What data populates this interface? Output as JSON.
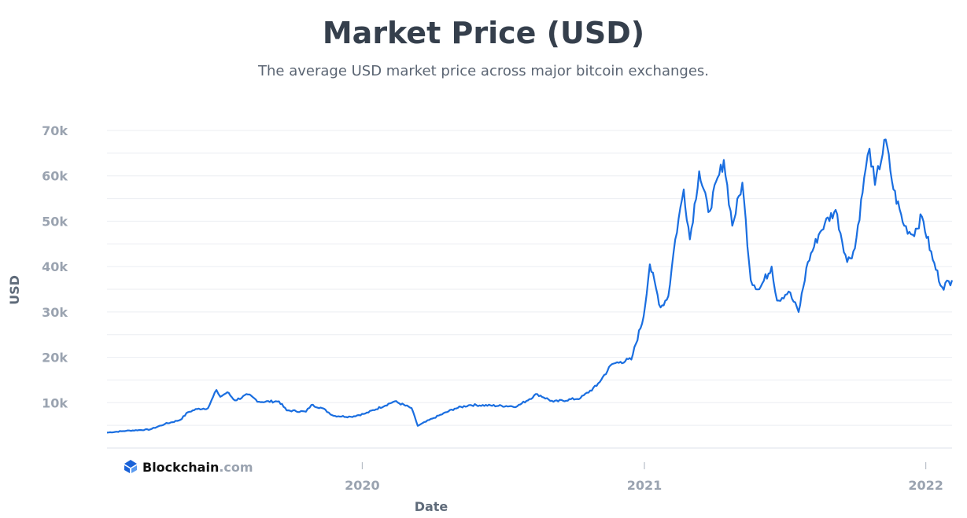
{
  "brand": {
    "name": "Blockchain",
    "suffix": ".com",
    "logo_color": "#1a62d8"
  },
  "chart_data": {
    "type": "line",
    "title": "Market Price (USD)",
    "subtitle": "The average USD market price across major bitcoin exchanges.",
    "xlabel": "Date",
    "ylabel": "USD",
    "x_ticks": [
      {
        "date": "2020-01-01",
        "label": "2020"
      },
      {
        "date": "2021-01-01",
        "label": "2021"
      },
      {
        "date": "2022-01-01",
        "label": "2022"
      }
    ],
    "y_ticks": [
      10000,
      20000,
      30000,
      40000,
      50000,
      60000,
      70000
    ],
    "y_tick_labels": [
      "10k",
      "20k",
      "30k",
      "40k",
      "50k",
      "60k",
      "70k"
    ],
    "xlim": [
      "2019-02-04",
      "2022-02-04"
    ],
    "ylim": [
      0,
      70000
    ],
    "grid": true,
    "line_color": "#1a6ee0",
    "series": [
      {
        "values": [
          [
            "2019-02-04",
            3400
          ],
          [
            "2019-03-01",
            3800
          ],
          [
            "2019-04-01",
            4100
          ],
          [
            "2019-04-20",
            5300
          ],
          [
            "2019-05-10",
            6200
          ],
          [
            "2019-05-20",
            7900
          ],
          [
            "2019-06-01",
            8600
          ],
          [
            "2019-06-15",
            8800
          ],
          [
            "2019-06-26",
            12800
          ],
          [
            "2019-07-01",
            11300
          ],
          [
            "2019-07-10",
            12300
          ],
          [
            "2019-07-20",
            10500
          ],
          [
            "2019-08-06",
            11800
          ],
          [
            "2019-08-20",
            10200
          ],
          [
            "2019-09-15",
            10300
          ],
          [
            "2019-09-25",
            8300
          ],
          [
            "2019-10-20",
            8000
          ],
          [
            "2019-10-27",
            9500
          ],
          [
            "2019-11-10",
            8800
          ],
          [
            "2019-11-25",
            7100
          ],
          [
            "2019-12-17",
            6900
          ],
          [
            "2020-01-05",
            7600
          ],
          [
            "2020-02-12",
            10300
          ],
          [
            "2020-03-05",
            8800
          ],
          [
            "2020-03-13",
            4900
          ],
          [
            "2020-04-01",
            6500
          ],
          [
            "2020-04-30",
            8700
          ],
          [
            "2020-05-20",
            9500
          ],
          [
            "2020-07-20",
            9200
          ],
          [
            "2020-08-15",
            11900
          ],
          [
            "2020-09-05",
            10200
          ],
          [
            "2020-10-10",
            11000
          ],
          [
            "2020-10-31",
            13700
          ],
          [
            "2020-11-20",
            18500
          ],
          [
            "2020-12-01",
            19000
          ],
          [
            "2020-12-15",
            19500
          ],
          [
            "2020-12-31",
            29000
          ],
          [
            "2021-01-08",
            40500
          ],
          [
            "2021-01-22",
            31000
          ],
          [
            "2021-02-01",
            33500
          ],
          [
            "2021-02-10",
            46000
          ],
          [
            "2021-02-21",
            57000
          ],
          [
            "2021-03-01",
            46000
          ],
          [
            "2021-03-13",
            61000
          ],
          [
            "2021-03-25",
            52000
          ],
          [
            "2021-04-14",
            63500
          ],
          [
            "2021-04-25",
            49000
          ],
          [
            "2021-05-08",
            58500
          ],
          [
            "2021-05-19",
            37000
          ],
          [
            "2021-05-30",
            35000
          ],
          [
            "2021-06-15",
            40000
          ],
          [
            "2021-06-22",
            32500
          ],
          [
            "2021-07-07",
            34500
          ],
          [
            "2021-07-20",
            30000
          ],
          [
            "2021-08-01",
            41000
          ],
          [
            "2021-08-15",
            47000
          ],
          [
            "2021-08-23",
            49500
          ],
          [
            "2021-09-06",
            52500
          ],
          [
            "2021-09-21",
            41000
          ],
          [
            "2021-10-01",
            44000
          ],
          [
            "2021-10-15",
            61500
          ],
          [
            "2021-10-20",
            66000
          ],
          [
            "2021-10-27",
            58000
          ],
          [
            "2021-11-10",
            68000
          ],
          [
            "2021-11-20",
            57000
          ],
          [
            "2021-12-04",
            49000
          ],
          [
            "2021-12-15",
            47000
          ],
          [
            "2021-12-27",
            51000
          ],
          [
            "2022-01-10",
            41500
          ],
          [
            "2022-01-22",
            35500
          ],
          [
            "2022-02-04",
            37000
          ]
        ]
      }
    ]
  }
}
